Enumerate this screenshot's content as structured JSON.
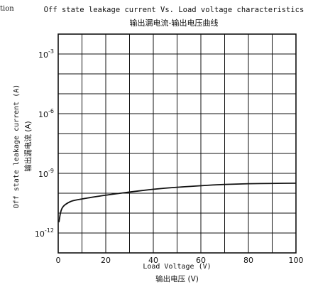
{
  "fragment_text": "tion",
  "chart_data": {
    "type": "line",
    "title": "Off state leakage current Vs. Load voltage characteristics",
    "subtitle": "输出漏电流-输出电压曲线",
    "xlabel": "Load Voltage (V)",
    "xlabel_cn": "输出电压 (V)",
    "ylabel": "Off state leakage current (A)",
    "ylabel_cn": "输出漏电流 (A)",
    "x_scale": "linear",
    "y_scale": "log",
    "xlim": [
      0,
      100
    ],
    "ylim_log10": [
      -13,
      -2
    ],
    "x_ticks": [
      0,
      20,
      40,
      60,
      80,
      100
    ],
    "y_ticks": [
      {
        "base": "10",
        "exp": "-3",
        "log10": -3
      },
      {
        "base": "10",
        "exp": "-6",
        "log10": -6
      },
      {
        "base": "10",
        "exp": "-9",
        "log10": -9
      },
      {
        "base": "10",
        "exp": "-12",
        "log10": -12
      }
    ],
    "grid": true,
    "grid_x_step": 10,
    "grid_y_step_log10": 1,
    "series": [
      {
        "color": "#111111",
        "points": [
          [
            0.3,
            3.5e-12
          ],
          [
            1,
            1.2e-11
          ],
          [
            2,
            2.2e-11
          ],
          [
            4,
            3.3e-11
          ],
          [
            6,
            4.2e-11
          ],
          [
            10,
            5.2e-11
          ],
          [
            15,
            6.5e-11
          ],
          [
            20,
            8e-11
          ],
          [
            30,
            1.15e-10
          ],
          [
            40,
            1.6e-10
          ],
          [
            50,
            2e-10
          ],
          [
            60,
            2.4e-10
          ],
          [
            70,
            2.8e-10
          ],
          [
            80,
            3e-10
          ],
          [
            90,
            3.1e-10
          ],
          [
            100,
            3.2e-10
          ]
        ]
      }
    ]
  }
}
